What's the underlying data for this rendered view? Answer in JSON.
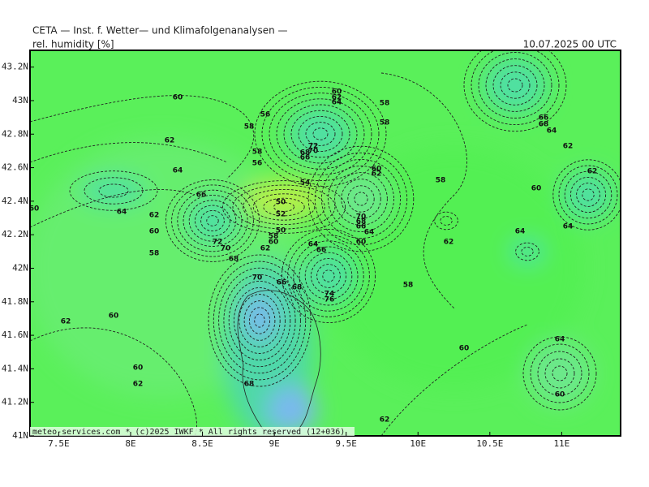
{
  "header": {
    "title": "CETA — Inst. f. Wetter— und Klimafolgenanalysen —",
    "parameter": "rel. humidity [%]",
    "valid": "10.07.2025 00 UTC"
  },
  "map": {
    "xlim": [
      7.3,
      11.41
    ],
    "ylim": [
      41,
      43.3
    ],
    "xticks": [
      {
        "value": 7.5,
        "label": "7.5E"
      },
      {
        "value": 8,
        "label": "8E"
      },
      {
        "value": 8.5,
        "label": "8.5E"
      },
      {
        "value": 9,
        "label": "9E"
      },
      {
        "value": 9.5,
        "label": "9.5E"
      },
      {
        "value": 10,
        "label": "10E"
      },
      {
        "value": 10.5,
        "label": "10.5E"
      },
      {
        "value": 11,
        "label": "11E"
      }
    ],
    "yticks": [
      {
        "value": 41,
        "label": "41N"
      },
      {
        "value": 41.2,
        "label": "41.2N"
      },
      {
        "value": 41.4,
        "label": "41.4N"
      },
      {
        "value": 41.6,
        "label": "41.6N"
      },
      {
        "value": 41.8,
        "label": "41.8N"
      },
      {
        "value": 42,
        "label": "42N"
      },
      {
        "value": 42.2,
        "label": "42.2N"
      },
      {
        "value": 42.4,
        "label": "42.4N"
      },
      {
        "value": 42.6,
        "label": "42.6N"
      },
      {
        "value": 42.8,
        "label": "42.8N"
      },
      {
        "value": 43,
        "label": "43N"
      },
      {
        "value": 43.2,
        "label": "43.2N"
      }
    ],
    "contour_labels": [
      "60",
      "56",
      "58",
      "62",
      "64",
      "58",
      "56",
      "60",
      "62",
      "64",
      "58",
      "58",
      "72",
      "70",
      "68",
      "66",
      "54",
      "50",
      "52",
      "50",
      "58",
      "60",
      "62",
      "64",
      "66",
      "66",
      "60",
      "64",
      "62",
      "60",
      "72",
      "70",
      "68",
      "58",
      "60",
      "62",
      "70",
      "68",
      "66",
      "64",
      "60",
      "58",
      "62",
      "64",
      "60",
      "64",
      "62",
      "66",
      "68",
      "64",
      "62",
      "70",
      "66",
      "68",
      "74",
      "76",
      "58",
      "60",
      "62",
      "60",
      "62",
      "68",
      "60",
      "64",
      "60",
      "62"
    ]
  },
  "footer": "meteo-services.com * (c)2025 IWKF * All rights reserved (12+036)"
}
